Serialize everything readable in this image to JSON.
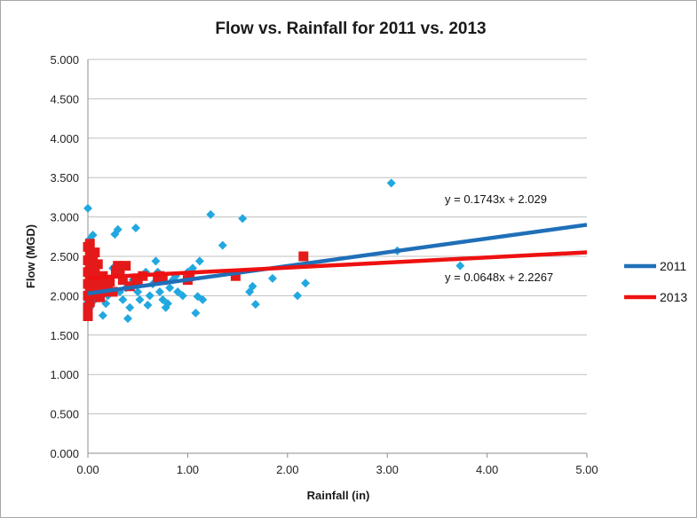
{
  "chart_data": {
    "type": "scatter",
    "title": "Flow vs. Rainfall for 2011 vs. 2013",
    "xlabel": "Rainfall (in)",
    "ylabel": "Flow (MGD)",
    "xlim": [
      0,
      5
    ],
    "ylim": [
      0,
      5
    ],
    "x_ticks": [
      "0.00",
      "1.00",
      "2.00",
      "3.00",
      "4.00",
      "5.00"
    ],
    "y_ticks": [
      "0.000",
      "0.500",
      "1.000",
      "1.500",
      "2.000",
      "2.500",
      "3.000",
      "3.500",
      "4.000",
      "4.500",
      "5.000"
    ],
    "grid": "horizontal",
    "legend_position": "right",
    "series": [
      {
        "name": "2011",
        "marker": "diamond",
        "marker_color": "#22a8e0",
        "trendline_color": "#1f6fb8",
        "trendline": {
          "slope": 0.1743,
          "intercept": 2.029,
          "label": "y = 0.1743x + 2.029"
        },
        "points": [
          [
            0.0,
            3.11
          ],
          [
            0.02,
            2.72
          ],
          [
            0.05,
            2.77
          ],
          [
            0.0,
            1.92
          ],
          [
            0.02,
            1.85
          ],
          [
            0.03,
            2.0
          ],
          [
            0.05,
            2.1
          ],
          [
            0.07,
            1.95
          ],
          [
            0.1,
            2.05
          ],
          [
            0.12,
            2.2
          ],
          [
            0.15,
            1.75
          ],
          [
            0.18,
            1.9
          ],
          [
            0.2,
            2.0
          ],
          [
            0.22,
            2.15
          ],
          [
            0.25,
            2.35
          ],
          [
            0.27,
            2.78
          ],
          [
            0.3,
            2.84
          ],
          [
            0.32,
            2.05
          ],
          [
            0.35,
            1.95
          ],
          [
            0.38,
            2.1
          ],
          [
            0.4,
            1.71
          ],
          [
            0.42,
            1.85
          ],
          [
            0.45,
            2.2
          ],
          [
            0.48,
            2.86
          ],
          [
            0.5,
            2.05
          ],
          [
            0.52,
            1.95
          ],
          [
            0.55,
            2.25
          ],
          [
            0.58,
            2.3
          ],
          [
            0.6,
            1.88
          ],
          [
            0.62,
            2.0
          ],
          [
            0.65,
            2.15
          ],
          [
            0.68,
            2.44
          ],
          [
            0.7,
            2.3
          ],
          [
            0.72,
            2.05
          ],
          [
            0.75,
            1.95
          ],
          [
            0.78,
            1.85
          ],
          [
            0.8,
            1.9
          ],
          [
            0.82,
            2.1
          ],
          [
            0.85,
            2.2
          ],
          [
            0.88,
            2.25
          ],
          [
            0.9,
            2.05
          ],
          [
            0.95,
            2.0
          ],
          [
            1.0,
            2.3
          ],
          [
            1.02,
            2.2
          ],
          [
            1.05,
            2.35
          ],
          [
            1.08,
            1.78
          ],
          [
            1.1,
            1.99
          ],
          [
            1.12,
            2.44
          ],
          [
            1.15,
            1.95
          ],
          [
            1.23,
            3.03
          ],
          [
            1.35,
            2.64
          ],
          [
            1.55,
            2.98
          ],
          [
            1.62,
            2.05
          ],
          [
            1.65,
            2.12
          ],
          [
            1.68,
            1.89
          ],
          [
            1.85,
            2.22
          ],
          [
            2.1,
            2.0
          ],
          [
            2.18,
            2.16
          ],
          [
            3.04,
            3.43
          ],
          [
            3.1,
            2.57
          ],
          [
            3.73,
            2.38
          ]
        ]
      },
      {
        "name": "2013",
        "marker": "square",
        "marker_color": "#e41a1a",
        "trendline_color": "#ee1111",
        "trendline": {
          "slope": 0.0648,
          "intercept": 2.2267,
          "label": "y = 0.0648x + 2.2267"
        },
        "points": [
          [
            0.0,
            1.74
          ],
          [
            0.0,
            1.85
          ],
          [
            0.0,
            2.0
          ],
          [
            0.0,
            2.15
          ],
          [
            0.0,
            2.3
          ],
          [
            0.0,
            2.45
          ],
          [
            0.0,
            2.62
          ],
          [
            0.02,
            2.66
          ],
          [
            0.02,
            1.92
          ],
          [
            0.02,
            2.08
          ],
          [
            0.02,
            2.22
          ],
          [
            0.02,
            2.38
          ],
          [
            0.02,
            2.52
          ],
          [
            0.05,
            2.02
          ],
          [
            0.05,
            2.18
          ],
          [
            0.05,
            2.35
          ],
          [
            0.05,
            2.48
          ],
          [
            0.07,
            2.12
          ],
          [
            0.07,
            2.28
          ],
          [
            0.07,
            2.55
          ],
          [
            0.1,
            2.05
          ],
          [
            0.1,
            2.2
          ],
          [
            0.1,
            2.4
          ],
          [
            0.12,
            2.15
          ],
          [
            0.12,
            1.98
          ],
          [
            0.15,
            2.25
          ],
          [
            0.15,
            2.1
          ],
          [
            0.18,
            2.05
          ],
          [
            0.18,
            2.2
          ],
          [
            0.2,
            2.1
          ],
          [
            0.22,
            2.18
          ],
          [
            0.25,
            2.05
          ],
          [
            0.28,
            2.32
          ],
          [
            0.3,
            2.38
          ],
          [
            0.32,
            2.28
          ],
          [
            0.35,
            2.2
          ],
          [
            0.38,
            2.38
          ],
          [
            0.42,
            2.12
          ],
          [
            0.48,
            2.22
          ],
          [
            0.5,
            2.18
          ],
          [
            0.55,
            2.25
          ],
          [
            0.7,
            2.22
          ],
          [
            0.72,
            2.25
          ],
          [
            0.75,
            2.2
          ],
          [
            1.0,
            2.2
          ],
          [
            1.02,
            2.25
          ],
          [
            1.48,
            2.25
          ],
          [
            2.16,
            2.5
          ]
        ]
      }
    ]
  }
}
